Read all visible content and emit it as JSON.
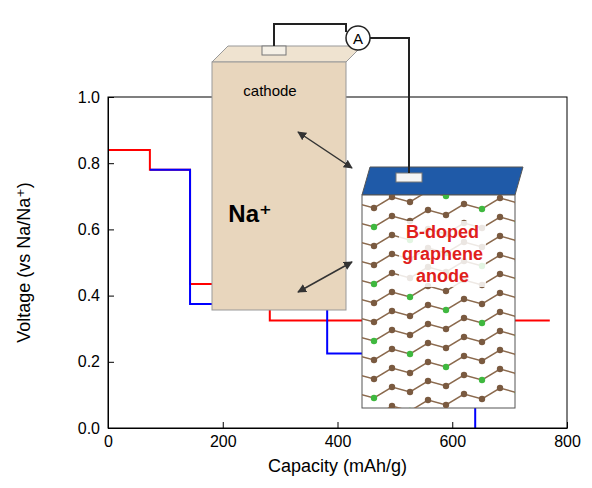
{
  "chart_data": {
    "type": "step",
    "x_label": "Capacity (mAh/g)",
    "y_label": "Voltage (vs Na/Na⁺)",
    "xlim": [
      0,
      800
    ],
    "xticks": [
      0,
      200,
      400,
      600,
      800
    ],
    "ylim": [
      0,
      1
    ],
    "yticks": [
      {
        "value": 0,
        "label": "0.0"
      },
      0.2,
      0.4,
      0.6,
      0.8,
      {
        "value": 1,
        "label": "1.0"
      }
    ],
    "grid": false,
    "series": [
      {
        "color": "#ff0000",
        "x": [
          0,
          73,
          143,
          282,
          770
        ],
        "values": [
          0.84,
          0.78,
          0.435,
          0.325,
          0.325
        ]
      },
      {
        "color": "#0000ff",
        "x": [
          73,
          143,
          382,
          640
        ],
        "values": [
          0.78,
          0.375,
          0.225,
          0.0
        ]
      }
    ],
    "annotations": [
      "A",
      "cathode",
      "Na⁺",
      "B-doped graphene anode"
    ]
  }
}
